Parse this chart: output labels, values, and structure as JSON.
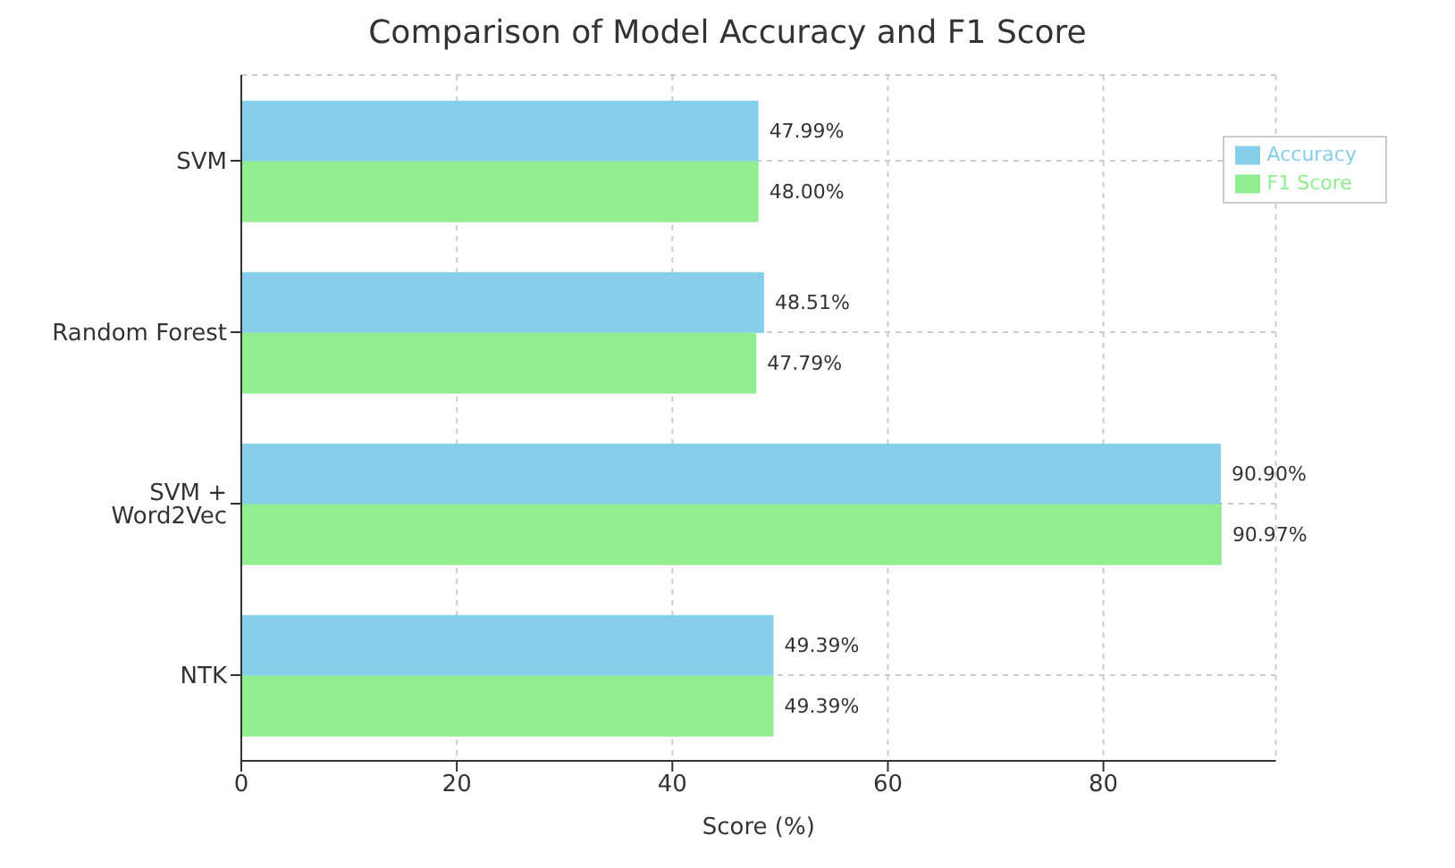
{
  "chart_data": {
    "type": "bar",
    "orientation": "horizontal",
    "title": "Comparison of Model Accuracy and F1 Score",
    "xlabel": "Score (%)",
    "categories": [
      "SVM",
      "Random Forest",
      "SVM + Word2Vec",
      "NTK"
    ],
    "series": [
      {
        "name": "Accuracy",
        "color": "#87ceeb",
        "values": [
          47.99,
          48.51,
          90.9,
          49.39
        ],
        "value_labels": [
          "47.99%",
          "48.51%",
          "90.90%",
          "49.39%"
        ]
      },
      {
        "name": "F1 Score",
        "color": "#90ee90",
        "values": [
          48.0,
          47.79,
          90.97,
          49.39
        ],
        "value_labels": [
          "48.00%",
          "47.79%",
          "90.97%",
          "49.39%"
        ]
      }
    ],
    "xlim": [
      0,
      96
    ],
    "xticks": [
      0,
      20,
      40,
      60,
      80
    ],
    "grid": true,
    "legend": "top right"
  }
}
